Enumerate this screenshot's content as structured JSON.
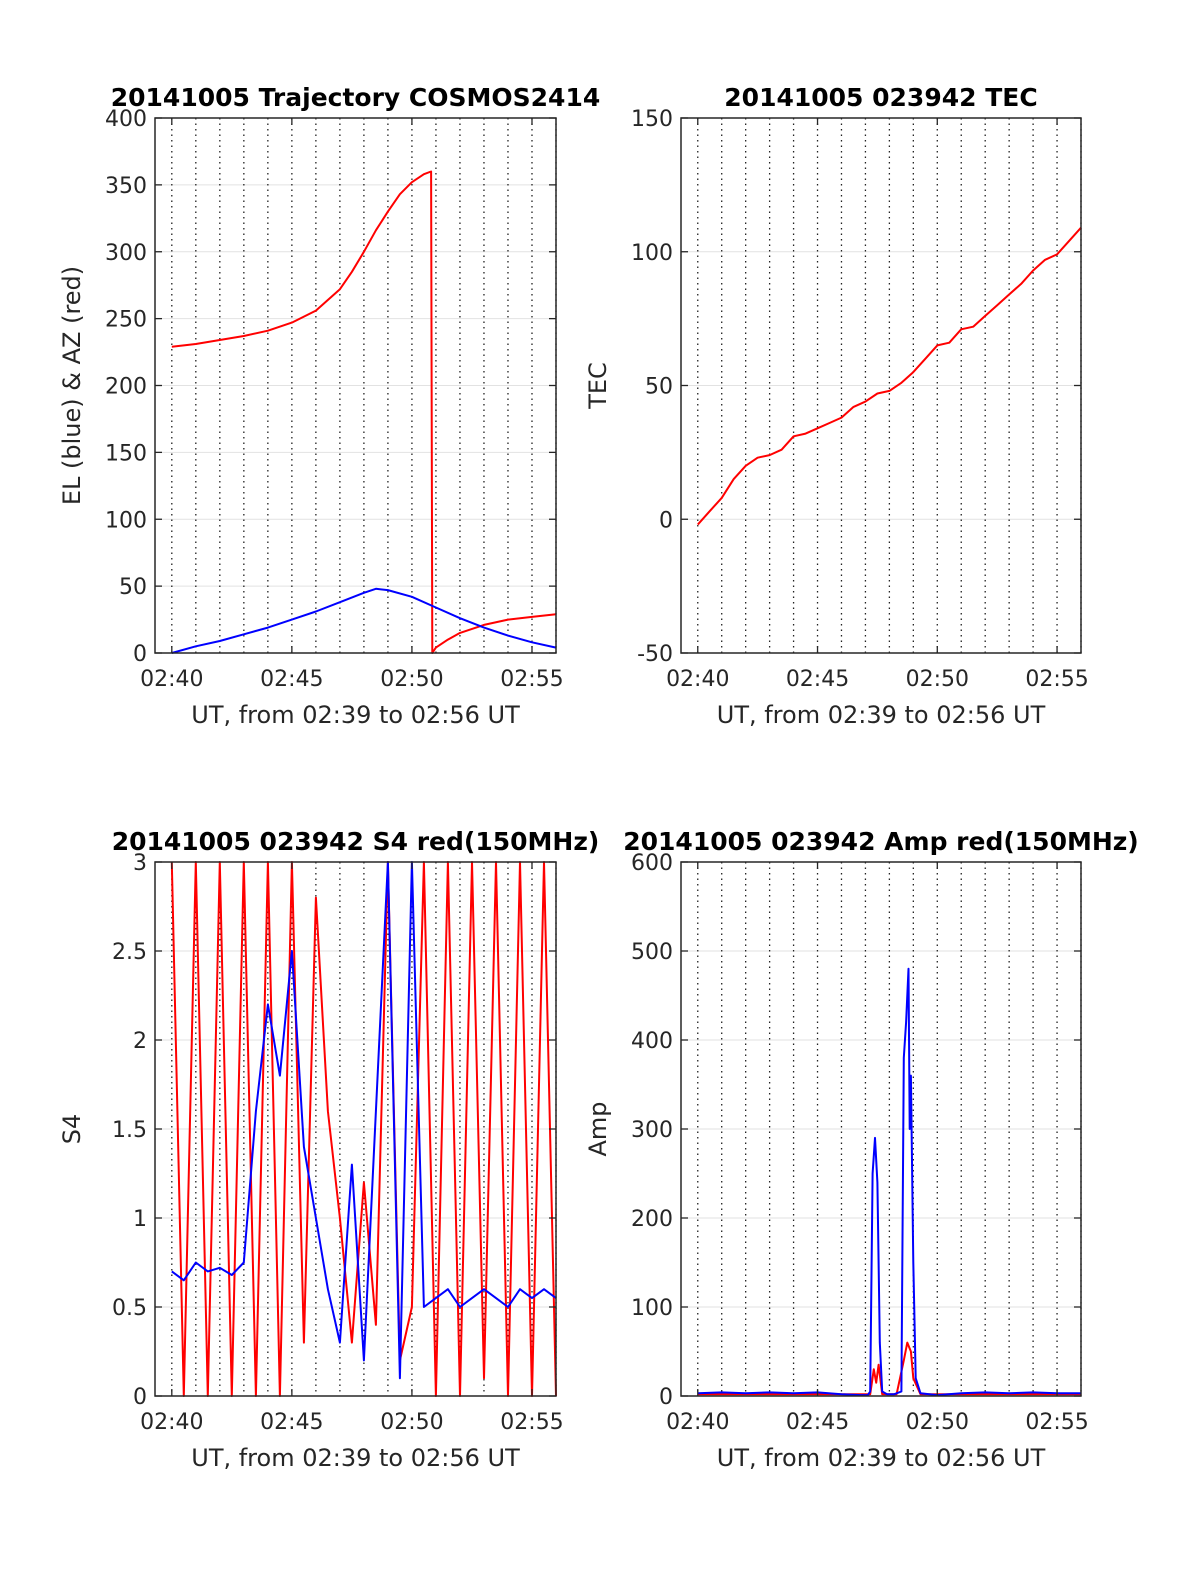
{
  "chart_data": [
    {
      "type": "line",
      "title": "20141005 Trajectory COSMOS2414",
      "xlabel": "UT, from 02:39 to 02:56 UT",
      "ylabel": "EL (blue) & AZ (red)",
      "x_unit": "minutes after 02:39 UT",
      "xlim": [
        0.3,
        17
      ],
      "ylim": [
        0,
        400
      ],
      "x_ticks": [
        "02:40",
        "02:45",
        "02:50",
        "02:55"
      ],
      "y_ticks": [
        "0",
        "50",
        "100",
        "150",
        "200",
        "250",
        "300",
        "350",
        "400"
      ],
      "grid": "dotted vertical every minute, light horizontal",
      "series": [
        {
          "color": "#ff0000",
          "x": [
            1,
            2,
            3,
            4,
            5,
            6,
            7,
            8,
            8.5,
            9,
            9.5,
            10,
            10.5,
            11,
            11.5,
            11.8,
            11.85,
            12,
            12.5,
            13,
            13.5,
            14,
            15,
            16,
            17
          ],
          "y": [
            229,
            231,
            234,
            237,
            241,
            247,
            256,
            272,
            285,
            300,
            316,
            330,
            343,
            352,
            358,
            360,
            0,
            4,
            10,
            15,
            18,
            21,
            25,
            27,
            29
          ]
        },
        {
          "color": "#0000ff",
          "x": [
            1,
            2,
            3,
            4,
            5,
            6,
            7,
            8,
            9,
            9.5,
            10,
            11,
            12,
            13,
            14,
            15,
            16,
            17
          ],
          "y": [
            0,
            5,
            9,
            14,
            19,
            25,
            31,
            38,
            45,
            48,
            47,
            42,
            34,
            26,
            19,
            13,
            8,
            4
          ]
        }
      ]
    },
    {
      "type": "line",
      "title": "20141005 023942 TEC",
      "xlabel": "UT, from 02:39 to 02:56 UT",
      "ylabel": "TEC",
      "x_unit": "minutes after 02:39 UT",
      "xlim": [
        0.3,
        17
      ],
      "ylim": [
        -50,
        150
      ],
      "x_ticks": [
        "02:40",
        "02:45",
        "02:50",
        "02:55"
      ],
      "y_ticks": [
        "-50",
        "0",
        "50",
        "100",
        "150"
      ],
      "series": [
        {
          "color": "#ff0000",
          "x": [
            1,
            1.5,
            2,
            2.5,
            3,
            3.5,
            4,
            4.5,
            5,
            5.5,
            6,
            6.5,
            7,
            7.5,
            8,
            8.5,
            9,
            9.5,
            10,
            10.5,
            11,
            11.5,
            12,
            12.5,
            13,
            13.5,
            14,
            14.5,
            15,
            15.5,
            16,
            16.5,
            17
          ],
          "y": [
            -2,
            3,
            8,
            15,
            20,
            23,
            24,
            26,
            31,
            32,
            34,
            36,
            38,
            42,
            44,
            47,
            48,
            51,
            55,
            60,
            65,
            66,
            71,
            72,
            76,
            80,
            84,
            88,
            93,
            97,
            99,
            104,
            109
          ]
        }
      ]
    },
    {
      "type": "line",
      "title": "20141005 023942 S4 red(150MHz)",
      "xlabel": "UT, from 02:39 to 02:56 UT",
      "ylabel": "S4",
      "x_unit": "minutes after 02:39 UT",
      "xlim": [
        0.3,
        17
      ],
      "ylim": [
        0,
        3
      ],
      "x_ticks": [
        "02:40",
        "02:45",
        "02:50",
        "02:55"
      ],
      "y_ticks": [
        "0",
        "0.5",
        "1",
        "1.5",
        "2",
        "2.5",
        "3"
      ],
      "series": [
        {
          "color": "#ff0000",
          "x": [
            1.0,
            1.5,
            2.0,
            2.5,
            3.0,
            3.5,
            4.0,
            4.5,
            5.0,
            5.5,
            6.0,
            6.5,
            7.0,
            7.5,
            8.0,
            8.5,
            9.0,
            9.5,
            10.0,
            10.5,
            11.0,
            11.5,
            12.0,
            12.5,
            13.0,
            13.5,
            14.0,
            14.5,
            15.0,
            15.5,
            16.0,
            16.5,
            17.0
          ],
          "y": [
            3,
            0,
            3,
            0,
            3,
            0,
            3,
            0,
            3,
            0,
            3,
            0.3,
            2.8,
            1.6,
            1.0,
            0.3,
            1.2,
            0.4,
            3.0,
            0.2,
            0.5,
            3.0,
            0,
            3.0,
            0,
            3.0,
            0.1,
            3.0,
            0,
            3.0,
            0,
            3.0,
            0
          ]
        },
        {
          "color": "#0000ff",
          "x": [
            1.0,
            1.5,
            2.0,
            2.5,
            3.0,
            3.5,
            4.0,
            4.5,
            5.0,
            5.5,
            6.0,
            6.5,
            7.0,
            7.5,
            8.0,
            8.5,
            9.0,
            9.5,
            10.0,
            10.5,
            11.0,
            11.5,
            12.0,
            12.5,
            13.0,
            13.5,
            14.0,
            14.5,
            15.0,
            15.5,
            16.0,
            16.5,
            17.0
          ],
          "y": [
            0.7,
            0.65,
            0.75,
            0.7,
            0.72,
            0.68,
            0.75,
            1.6,
            2.2,
            1.8,
            2.5,
            1.4,
            1.0,
            0.6,
            0.3,
            1.3,
            0.2,
            1.6,
            3.0,
            0.1,
            3.0,
            0.5,
            0.55,
            0.6,
            0.5,
            0.55,
            0.6,
            0.55,
            0.5,
            0.6,
            0.55,
            0.6,
            0.55
          ]
        }
      ]
    },
    {
      "type": "line",
      "title": "20141005 023942 Amp red(150MHz)",
      "xlabel": "UT, from 02:39 to 02:56 UT",
      "ylabel": "Amp",
      "x_unit": "minutes after 02:39 UT",
      "xlim": [
        0.3,
        17
      ],
      "ylim": [
        0,
        600
      ],
      "x_ticks": [
        "02:40",
        "02:45",
        "02:50",
        "02:55"
      ],
      "y_ticks": [
        "0",
        "100",
        "200",
        "300",
        "400",
        "500",
        "600"
      ],
      "series": [
        {
          "color": "#ff0000",
          "x": [
            1,
            3,
            5,
            7,
            8.2,
            8.35,
            8.45,
            8.55,
            8.7,
            9.0,
            9.3,
            9.6,
            9.75,
            9.9,
            10.0,
            10.3,
            12,
            14,
            17
          ],
          "y": [
            2,
            2,
            2,
            2,
            2,
            30,
            15,
            35,
            2,
            2,
            2,
            40,
            60,
            50,
            20,
            2,
            2,
            2,
            2
          ]
        },
        {
          "color": "#0000ff",
          "x": [
            1,
            2,
            3,
            4,
            5,
            6,
            7,
            7.8,
            8.1,
            8.2,
            8.3,
            8.4,
            8.5,
            8.6,
            8.7,
            8.9,
            9.2,
            9.5,
            9.6,
            9.7,
            9.8,
            9.85,
            9.9,
            10.0,
            10.1,
            10.3,
            11,
            12,
            13,
            14,
            15,
            16,
            17
          ],
          "y": [
            3,
            4,
            3,
            4,
            3,
            4,
            2,
            1,
            1,
            5,
            250,
            290,
            240,
            60,
            5,
            2,
            2,
            5,
            380,
            420,
            480,
            300,
            360,
            150,
            20,
            3,
            1,
            3,
            4,
            3,
            4,
            3,
            3
          ]
        }
      ]
    }
  ]
}
